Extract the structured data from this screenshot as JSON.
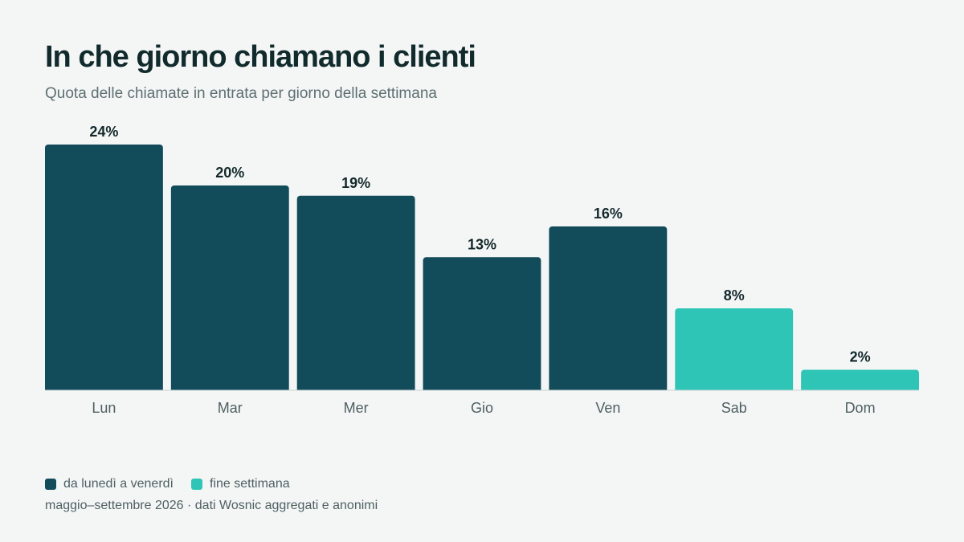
{
  "title": "In che giorno chiamano i clienti",
  "subtitle": "Quota delle chiamate in entrata per giorno della settimana",
  "legend": [
    {
      "label": "da lunedì a venerdì",
      "color": "#124b5a"
    },
    {
      "label": "fine settimana",
      "color": "#2ec5b6"
    }
  ],
  "source": "maggio–settembre 2026 · dati Wosnic aggregati e anonimi",
  "chart_data": {
    "type": "bar",
    "categories": [
      "Lun",
      "Mar",
      "Mer",
      "Gio",
      "Ven",
      "Sab",
      "Dom"
    ],
    "values": [
      24,
      20,
      19,
      13,
      16,
      8,
      2
    ],
    "value_labels": [
      "24%",
      "20%",
      "19%",
      "13%",
      "16%",
      "8%",
      "2%"
    ],
    "groups": [
      "da lunedì a venerdì",
      "da lunedì a venerdì",
      "da lunedì a venerdì",
      "da lunedì a venerdì",
      "da lunedì a venerdì",
      "fine settimana",
      "fine settimana"
    ],
    "unit": "%",
    "ylim": [
      0,
      24
    ],
    "grid": false,
    "legend_position": "bottom-left"
  }
}
